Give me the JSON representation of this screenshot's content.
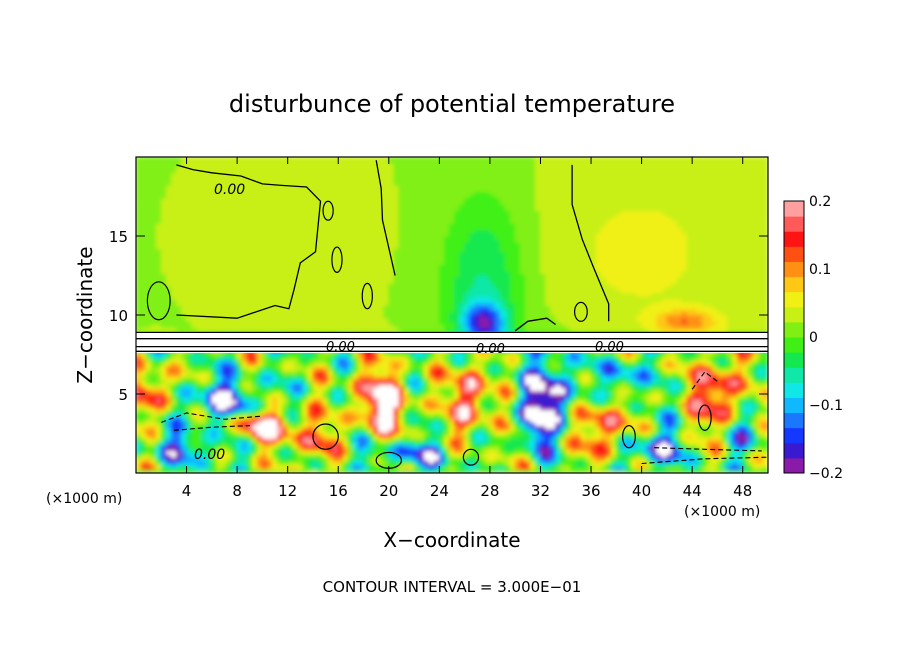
{
  "chart_data": {
    "type": "heatmap",
    "title": "disturbunce of potential temperature",
    "xlabel": "X−coordinate",
    "ylabel": "Z−coordinate",
    "x_unit_label_left": "(×1000 m)",
    "x_unit_label_right": "(×1000 m)",
    "xlim": [
      0,
      50
    ],
    "ylim": [
      0,
      20
    ],
    "x_ticks": [
      4,
      8,
      12,
      16,
      20,
      24,
      28,
      32,
      36,
      40,
      44,
      48
    ],
    "y_ticks": [
      5,
      10,
      15
    ],
    "colorbar": {
      "range": [
        -0.2,
        0.2
      ],
      "ticks": [
        0.2,
        0.1,
        0,
        -0.1,
        -0.2
      ],
      "tick_labels": [
        "0.2",
        "0.1",
        "0",
        "−0.1",
        "−0.2"
      ],
      "colors": [
        "#8a1aa8",
        "#3a1ad0",
        "#1438ff",
        "#1a78ff",
        "#10b8ff",
        "#10e8e8",
        "#10e8a8",
        "#14e850",
        "#40f014",
        "#80f014",
        "#c8f014",
        "#f0f014",
        "#ffc814",
        "#ff9014",
        "#ff5014",
        "#ff1414",
        "#ff5a5a",
        "#ffa0a0"
      ]
    },
    "contour_labels": [
      "0.00",
      "0.00",
      "0.00",
      "0.00",
      "0.00"
    ],
    "contour_interval_text": "CONTOUR INTERVAL = 3.000E−01",
    "blobs": [
      {
        "x": 27.5,
        "z": 11.5,
        "rx": 3.2,
        "rz": 6.0,
        "v": -0.07
      },
      {
        "x": 27.5,
        "z": 9.5,
        "rx": 1.6,
        "rz": 1.2,
        "v": -0.16
      },
      {
        "x": 12,
        "z": 15,
        "rx": 5,
        "rz": 4,
        "v": 0.015
      },
      {
        "x": 40,
        "z": 14,
        "rx": 7,
        "rz": 5,
        "v": 0.03
      },
      {
        "x": 43.5,
        "z": 9.6,
        "rx": 2.5,
        "rz": 0.8,
        "v": 0.08
      },
      {
        "x": 33,
        "z": 5.0,
        "rx": 2.0,
        "rz": 2.3,
        "v": -0.19
      },
      {
        "x": 31.5,
        "z": 3.0,
        "rx": 1.2,
        "rz": 2.0,
        "v": -0.14
      },
      {
        "x": 19.5,
        "z": 4.5,
        "rx": 2.2,
        "rz": 2.0,
        "v": 0.22
      },
      {
        "x": 26.5,
        "z": 5.0,
        "rx": 1.6,
        "rz": 2.6,
        "v": 0.21
      },
      {
        "x": 37,
        "z": 3.0,
        "rx": 1.8,
        "rz": 2.2,
        "v": 0.17
      },
      {
        "x": 46,
        "z": 5.0,
        "rx": 1.6,
        "rz": 2.3,
        "v": 0.21
      },
      {
        "x": 7,
        "z": 4.6,
        "rx": 3.0,
        "rz": 1.4,
        "v": -0.17
      },
      {
        "x": 10,
        "z": 3.0,
        "rx": 2.5,
        "rz": 1.0,
        "v": 0.22
      },
      {
        "x": 4,
        "z": 1.6,
        "rx": 3.0,
        "rz": 1.0,
        "v": -0.12
      },
      {
        "x": 14,
        "z": 2.0,
        "rx": 1.8,
        "rz": 1.5,
        "v": 0.12
      },
      {
        "x": 22,
        "z": 1.2,
        "rx": 3.5,
        "rz": 0.9,
        "v": -0.13
      },
      {
        "x": 41,
        "z": 1.5,
        "rx": 2.5,
        "rz": 1.1,
        "v": -0.15
      },
      {
        "x": 48.5,
        "z": 2.6,
        "rx": 1.5,
        "rz": 1.5,
        "v": -0.1
      },
      {
        "x": 38.5,
        "z": 6.0,
        "rx": 1.5,
        "rz": 1.5,
        "v": -0.15
      },
      {
        "x": 16.5,
        "z": 6.3,
        "rx": 1.5,
        "rz": 1.1,
        "v": 0.01
      },
      {
        "x": 1.5,
        "z": 5.2,
        "rx": 1.6,
        "rz": 1.6,
        "v": 0.15
      },
      {
        "x": 29.5,
        "z": 1.6,
        "rx": 1.5,
        "rz": 1.4,
        "v": 0.03
      }
    ],
    "solid_contours": [
      [
        [
          0,
          8.9
        ],
        [
          50,
          8.9
        ]
      ],
      [
        [
          0,
          8.5
        ],
        [
          50,
          8.5
        ]
      ],
      [
        [
          0,
          8.0
        ],
        [
          50,
          8.0
        ]
      ],
      [
        [
          0,
          7.7
        ],
        [
          50,
          7.7
        ]
      ],
      [
        [
          3.2,
          10.0
        ],
        [
          8.0,
          9.8
        ],
        [
          11,
          10.6
        ],
        [
          12.1,
          10.4
        ],
        [
          12.5,
          11.6
        ],
        [
          13.0,
          13.3
        ],
        [
          14.2,
          14.0
        ],
        [
          14.6,
          17.2
        ],
        [
          13.5,
          18.1
        ],
        [
          11.5,
          18.2
        ],
        [
          10.0,
          18.3
        ],
        [
          8.3,
          18.8
        ],
        [
          6.0,
          19.0
        ],
        [
          4.5,
          19.2
        ],
        [
          3.2,
          19.5
        ]
      ],
      [
        [
          20.5,
          12.5
        ],
        [
          19.5,
          16.0
        ],
        [
          19.4,
          18.0
        ],
        [
          19.0,
          19.8
        ]
      ],
      [
        [
          34.5,
          19.5
        ],
        [
          34.5,
          17.0
        ],
        [
          35.3,
          14.8
        ],
        [
          36.2,
          13.0
        ],
        [
          37.4,
          10.7
        ],
        [
          37.4,
          9.6
        ]
      ],
      [
        [
          30.0,
          9.0
        ],
        [
          31.0,
          9.6
        ],
        [
          32.5,
          9.8
        ],
        [
          33.2,
          9.4
        ]
      ]
    ],
    "dashed_contours": [
      [
        [
          2,
          3.2
        ],
        [
          4,
          3.8
        ],
        [
          7,
          3.4
        ],
        [
          10,
          3.6
        ]
      ],
      [
        [
          3,
          2.7
        ],
        [
          6,
          2.9
        ],
        [
          9,
          3.0
        ]
      ],
      [
        [
          40,
          0.6
        ],
        [
          45,
          0.9
        ],
        [
          50,
          1.0
        ]
      ],
      [
        [
          41,
          1.6
        ],
        [
          45,
          1.5
        ],
        [
          49.5,
          1.4
        ]
      ],
      [
        [
          44,
          5.3
        ],
        [
          45,
          6.4
        ],
        [
          46,
          5.8
        ]
      ]
    ],
    "closed_contours": [
      {
        "x": 1.8,
        "z": 10.9,
        "rx": 0.9,
        "rz": 1.2
      },
      {
        "x": 15.2,
        "z": 16.6,
        "rx": 0.4,
        "rz": 0.6
      },
      {
        "x": 15.9,
        "z": 13.5,
        "rx": 0.4,
        "rz": 0.8
      },
      {
        "x": 18.3,
        "z": 11.2,
        "rx": 0.4,
        "rz": 0.8
      },
      {
        "x": 35.2,
        "z": 10.2,
        "rx": 0.5,
        "rz": 0.6
      },
      {
        "x": 15.0,
        "z": 2.3,
        "rx": 1.0,
        "rz": 0.8
      },
      {
        "x": 20.0,
        "z": 0.8,
        "rx": 1.0,
        "rz": 0.5
      },
      {
        "x": 26.5,
        "z": 1.0,
        "rx": 0.6,
        "rz": 0.5
      },
      {
        "x": 39.0,
        "z": 2.3,
        "rx": 0.5,
        "rz": 0.7
      },
      {
        "x": 45.0,
        "z": 3.5,
        "rx": 0.5,
        "rz": 0.8
      }
    ]
  }
}
